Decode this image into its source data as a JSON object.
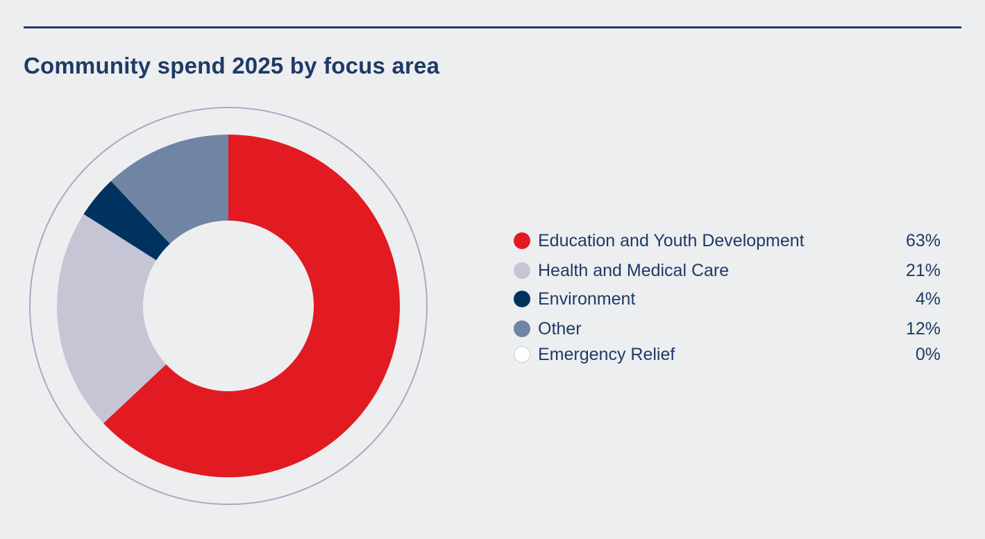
{
  "chart_data": {
    "type": "pie",
    "variant": "donut",
    "title": "Community spend 2025 by focus area",
    "categories": [
      "Education and Youth Development",
      "Health and Medical Care",
      "Environment",
      "Other",
      "Emergency Relief"
    ],
    "values": [
      63,
      21,
      4,
      12,
      0
    ],
    "labels": [
      "63%",
      "21%",
      "4%",
      "12%",
      "0%"
    ],
    "colors": [
      "#e21a22",
      "#c5c5d6",
      "#00325f",
      "#7084a3",
      "#ffffff"
    ],
    "legend_position": "right"
  }
}
